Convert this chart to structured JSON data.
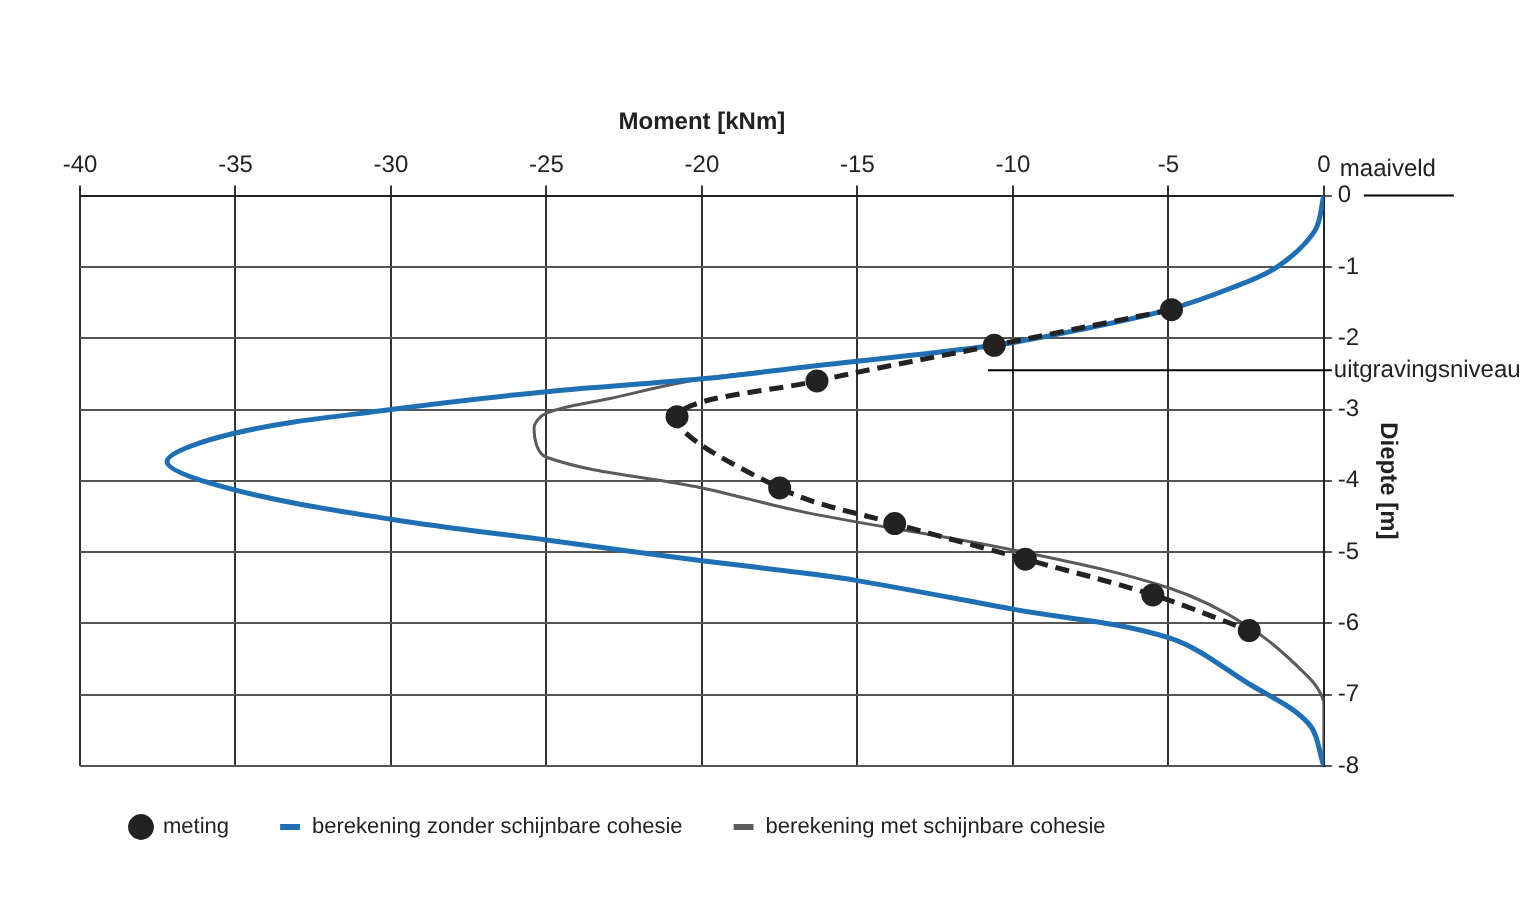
{
  "chart_data": {
    "type": "line",
    "xlabel": "Moment [kNm]",
    "ylabel": "Diepte [m]",
    "xlim": [
      -40,
      0
    ],
    "xticks": [
      -40,
      -35,
      -30,
      -25,
      -20,
      -15,
      -10,
      -5,
      0
    ],
    "ylim": [
      -8,
      0
    ],
    "yticks": [
      -8,
      -7,
      -6,
      -5,
      -4,
      -3,
      -2,
      -1,
      0
    ],
    "grid": true,
    "legend": "bottom left",
    "ref_lines": [
      {
        "axis": "y",
        "value": 0,
        "label": "maaiveld",
        "color": "#000000"
      },
      {
        "axis": "y",
        "value": -2.45,
        "label": "uitgravingsniveau",
        "color": "#000000"
      }
    ],
    "series": [
      {
        "name": "meting",
        "color": "#222222",
        "marker": "circle",
        "line_style": "dashed",
        "x": [
          -4.9,
          -10.6,
          -16.3,
          -20.8,
          -17.5,
          -13.8,
          -9.6,
          -5.5,
          -2.4
        ],
        "values": [
          -1.6,
          -2.1,
          -2.6,
          -3.1,
          -4.1,
          -4.6,
          -5.1,
          -5.6,
          -6.1
        ]
      },
      {
        "name": "berekening zonder schijnbare cohesie",
        "color": "#1f6fb5",
        "marker": "none",
        "line_style": "solid",
        "x": [
          0,
          -0.3,
          -1.5,
          -3,
          -5,
          -7.5,
          -10.6,
          -16.6,
          -20,
          -25,
          -30,
          -35,
          -37.2,
          -35,
          -30,
          -25,
          -20,
          -16.6,
          -15,
          -10,
          -5,
          -2.4,
          -0.5,
          0
        ],
        "values": [
          0,
          -0.5,
          -1,
          -1.3,
          -1.6,
          -1.85,
          -2.1,
          -2.4,
          -2.57,
          -2.75,
          -3,
          -3.33,
          -3.73,
          -4.13,
          -4.54,
          -4.83,
          -5.12,
          -5.3,
          -5.4,
          -5.8,
          -6.2,
          -6.85,
          -7.4,
          -8
        ]
      },
      {
        "name": "berekening met schijnbare cohesie",
        "color": "#5a5a5a",
        "marker": "none",
        "line_style": "solid",
        "x": [
          0,
          -0.3,
          -1.5,
          -3,
          -5,
          -7.5,
          -10.6,
          -16.6,
          -20,
          -23,
          -25,
          -25.4,
          -25,
          -20,
          -16.6,
          -10,
          -5,
          -2.4,
          -0.5,
          0,
          0,
          0
        ],
        "values": [
          0,
          -0.5,
          -1,
          -1.3,
          -1.6,
          -1.85,
          -2.1,
          -2.4,
          -2.57,
          -2.85,
          -3.05,
          -3.27,
          -3.67,
          -4.1,
          -4.45,
          -4.97,
          -5.5,
          -6.05,
          -6.75,
          -7.1,
          -7.5,
          -8
        ]
      }
    ]
  }
}
